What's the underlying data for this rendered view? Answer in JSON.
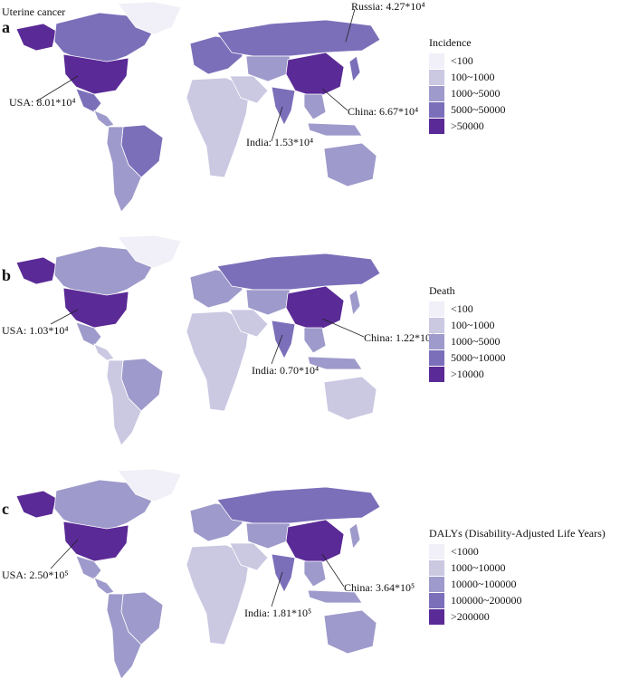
{
  "figure": {
    "title": "Uterine cancer"
  },
  "panels": [
    {
      "id": "a",
      "letter": "a",
      "legend": {
        "title": "Incidence",
        "items": [
          {
            "label": "<100",
            "color": "#f1eff7"
          },
          {
            "label": "100~1000",
            "color": "#cbc8e2"
          },
          {
            "label": "1000~5000",
            "color": "#9e9acb"
          },
          {
            "label": "5000~50000",
            "color": "#7b6fba"
          },
          {
            "label": ">50000",
            "color": "#5a2a96"
          }
        ]
      },
      "annotations": {
        "usa": "USA: 8.01*10⁴",
        "russia": "Russia: 4.27*10⁴",
        "china": "China: 6.67*10⁴",
        "india": "India: 1.53*10⁴"
      },
      "country_classes": {
        "usa": 4,
        "canada": 3,
        "alaska": 4,
        "greenland": 0,
        "mexico": 3,
        "central_america": 2,
        "brazil": 3,
        "south_america_other": 2,
        "europe": 3,
        "russia": 3,
        "africa": 1,
        "middle_east": 1,
        "central_asia": 2,
        "china": 4,
        "india": 3,
        "southeast_asia": 2,
        "japan": 3,
        "indonesia": 2,
        "australia": 2
      }
    },
    {
      "id": "b",
      "letter": "b",
      "legend": {
        "title": "Death",
        "items": [
          {
            "label": "<100",
            "color": "#f1eff7"
          },
          {
            "label": "100~1000",
            "color": "#cbc8e2"
          },
          {
            "label": "1000~5000",
            "color": "#9e9acb"
          },
          {
            "label": "5000~10000",
            "color": "#7b6fba"
          },
          {
            "label": ">10000",
            "color": "#5a2a96"
          }
        ]
      },
      "annotations": {
        "usa": "USA: 1.03*10⁴",
        "china": "China: 1.22*10⁴",
        "india": "India: 0.70*10⁴"
      },
      "country_classes": {
        "usa": 4,
        "canada": 2,
        "alaska": 4,
        "greenland": 0,
        "mexico": 2,
        "central_america": 1,
        "brazil": 2,
        "south_america_other": 1,
        "europe": 2,
        "russia": 3,
        "africa": 1,
        "middle_east": 1,
        "central_asia": 2,
        "china": 4,
        "india": 3,
        "southeast_asia": 2,
        "japan": 2,
        "indonesia": 2,
        "australia": 1
      }
    },
    {
      "id": "c",
      "letter": "c",
      "legend": {
        "title": "DALYs (Disability-Adjusted Life Years)",
        "items": [
          {
            "label": "<1000",
            "color": "#f1eff7"
          },
          {
            "label": "1000~10000",
            "color": "#cbc8e2"
          },
          {
            "label": "10000~100000",
            "color": "#9e9acb"
          },
          {
            "label": "100000~200000",
            "color": "#7b6fba"
          },
          {
            "label": ">200000",
            "color": "#5a2a96"
          }
        ]
      },
      "annotations": {
        "usa": "USA: 2.50*10⁵",
        "china": "China: 3.64*10⁵",
        "india": "India: 1.81*10⁵"
      },
      "country_classes": {
        "usa": 4,
        "canada": 2,
        "alaska": 4,
        "greenland": 0,
        "mexico": 2,
        "central_america": 2,
        "brazil": 2,
        "south_america_other": 2,
        "europe": 2,
        "russia": 3,
        "africa": 1,
        "middle_east": 1,
        "central_asia": 2,
        "china": 4,
        "india": 3,
        "southeast_asia": 2,
        "japan": 2,
        "indonesia": 2,
        "australia": 2
      }
    }
  ]
}
